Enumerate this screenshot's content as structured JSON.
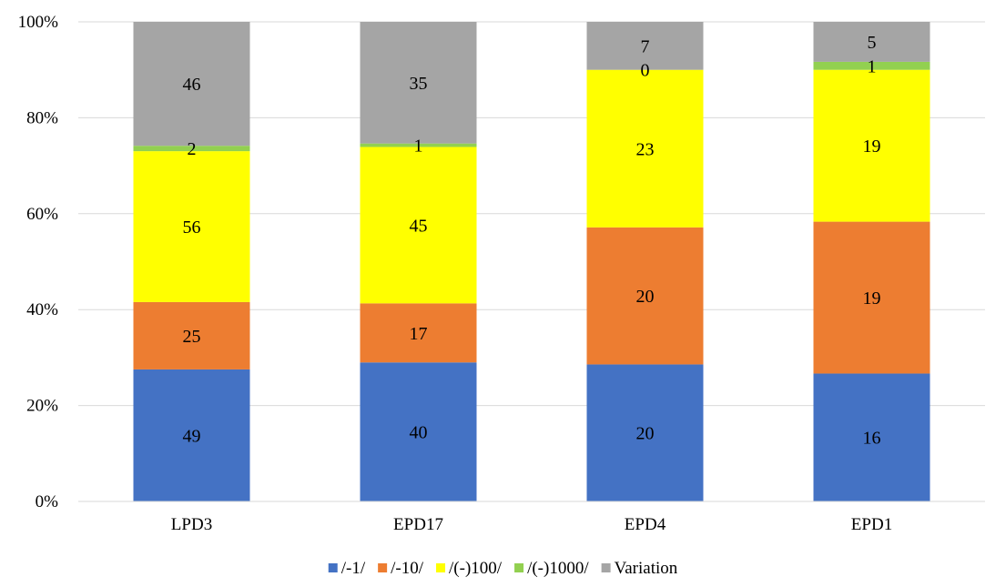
{
  "chart_data": {
    "type": "bar",
    "stacked": "percent",
    "categories": [
      "LPD3",
      "EPD17",
      "EPD4",
      "EPD1"
    ],
    "series": [
      {
        "name": "/-1/",
        "color": "#4472C4",
        "values": [
          49,
          40,
          20,
          16
        ]
      },
      {
        "name": "/-10/",
        "color": "#ED7D31",
        "values": [
          25,
          17,
          20,
          19
        ]
      },
      {
        "name": "/(-)100/",
        "color": "#FFFF00",
        "values": [
          56,
          45,
          23,
          19
        ]
      },
      {
        "name": "/(-)1000/",
        "color": "#92D050",
        "values": [
          2,
          1,
          0,
          1
        ]
      },
      {
        "name": "Variation",
        "color": "#A5A5A5",
        "values": [
          46,
          35,
          7,
          5
        ]
      }
    ],
    "y_ticks": [
      "0%",
      "20%",
      "40%",
      "60%",
      "80%",
      "100%"
    ],
    "ylim": [
      0,
      100
    ],
    "grid": true,
    "legend_position": "bottom"
  }
}
